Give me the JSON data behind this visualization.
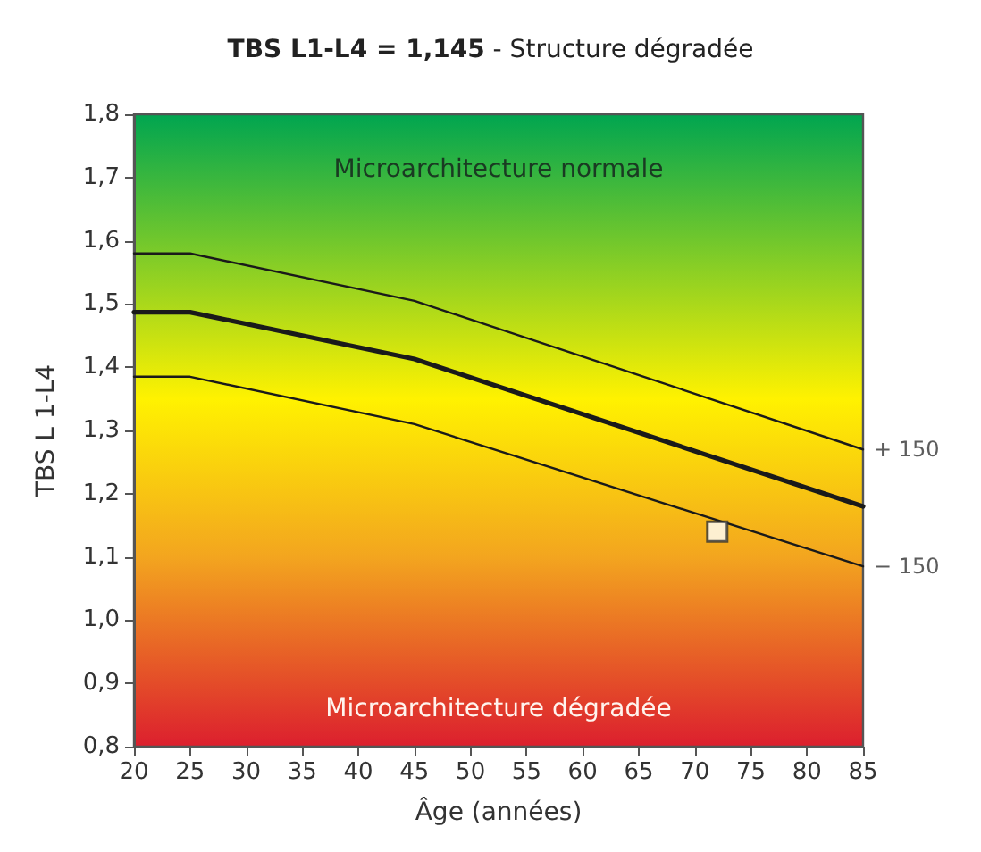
{
  "chart_data": {
    "type": "line",
    "title": "TBS L1-L4 = 1,145",
    "subtitle": "- Structure dégradée",
    "xlabel": "Âge (années)",
    "ylabel": "TBS L 1-L4",
    "xlim": [
      20,
      85
    ],
    "xticks": [
      20,
      25,
      30,
      35,
      40,
      45,
      50,
      55,
      60,
      65,
      70,
      75,
      80,
      85
    ],
    "ylim": [
      0.8,
      1.8
    ],
    "yticks": [
      {
        "value": 0.8,
        "label": "0,8"
      },
      {
        "value": 0.9,
        "label": "0,9"
      },
      {
        "value": 1.0,
        "label": "1,0"
      },
      {
        "value": 1.1,
        "label": "1,1"
      },
      {
        "value": 1.2,
        "label": "1,2"
      },
      {
        "value": 1.3,
        "label": "1,3"
      },
      {
        "value": 1.4,
        "label": "1,4"
      },
      {
        "value": 1.5,
        "label": "1,5"
      },
      {
        "value": 1.6,
        "label": "1,6"
      },
      {
        "value": 1.7,
        "label": "1,7"
      },
      {
        "value": 1.8,
        "label": "1,8"
      }
    ],
    "grid": false,
    "marker": "none",
    "series": [
      {
        "color": "#1a1a1a",
        "x": [
          20,
          25,
          45,
          85
        ],
        "values": [
          1.58,
          1.58,
          1.505,
          1.27
        ]
      },
      {
        "color": "#1a1a1a",
        "x": [
          20,
          25,
          45,
          85
        ],
        "values": [
          1.487,
          1.487,
          1.413,
          1.18
        ]
      },
      {
        "color": "#1a1a1a",
        "x": [
          20,
          25,
          45,
          85
        ],
        "values": [
          1.385,
          1.385,
          1.31,
          1.085
        ]
      },
      {
        "type": "scatter",
        "marker": "square",
        "color": "#ffffff",
        "x": [
          72
        ],
        "values": [
          1.14
        ]
      }
    ],
    "annotations": [
      "Microarchitecture normale",
      "Microarchitecture dégradée",
      {
        "text": "+ 150",
        "x": 85,
        "y": 1.27
      },
      {
        "text": "− 150",
        "x": 85,
        "y": 1.085
      }
    ]
  }
}
